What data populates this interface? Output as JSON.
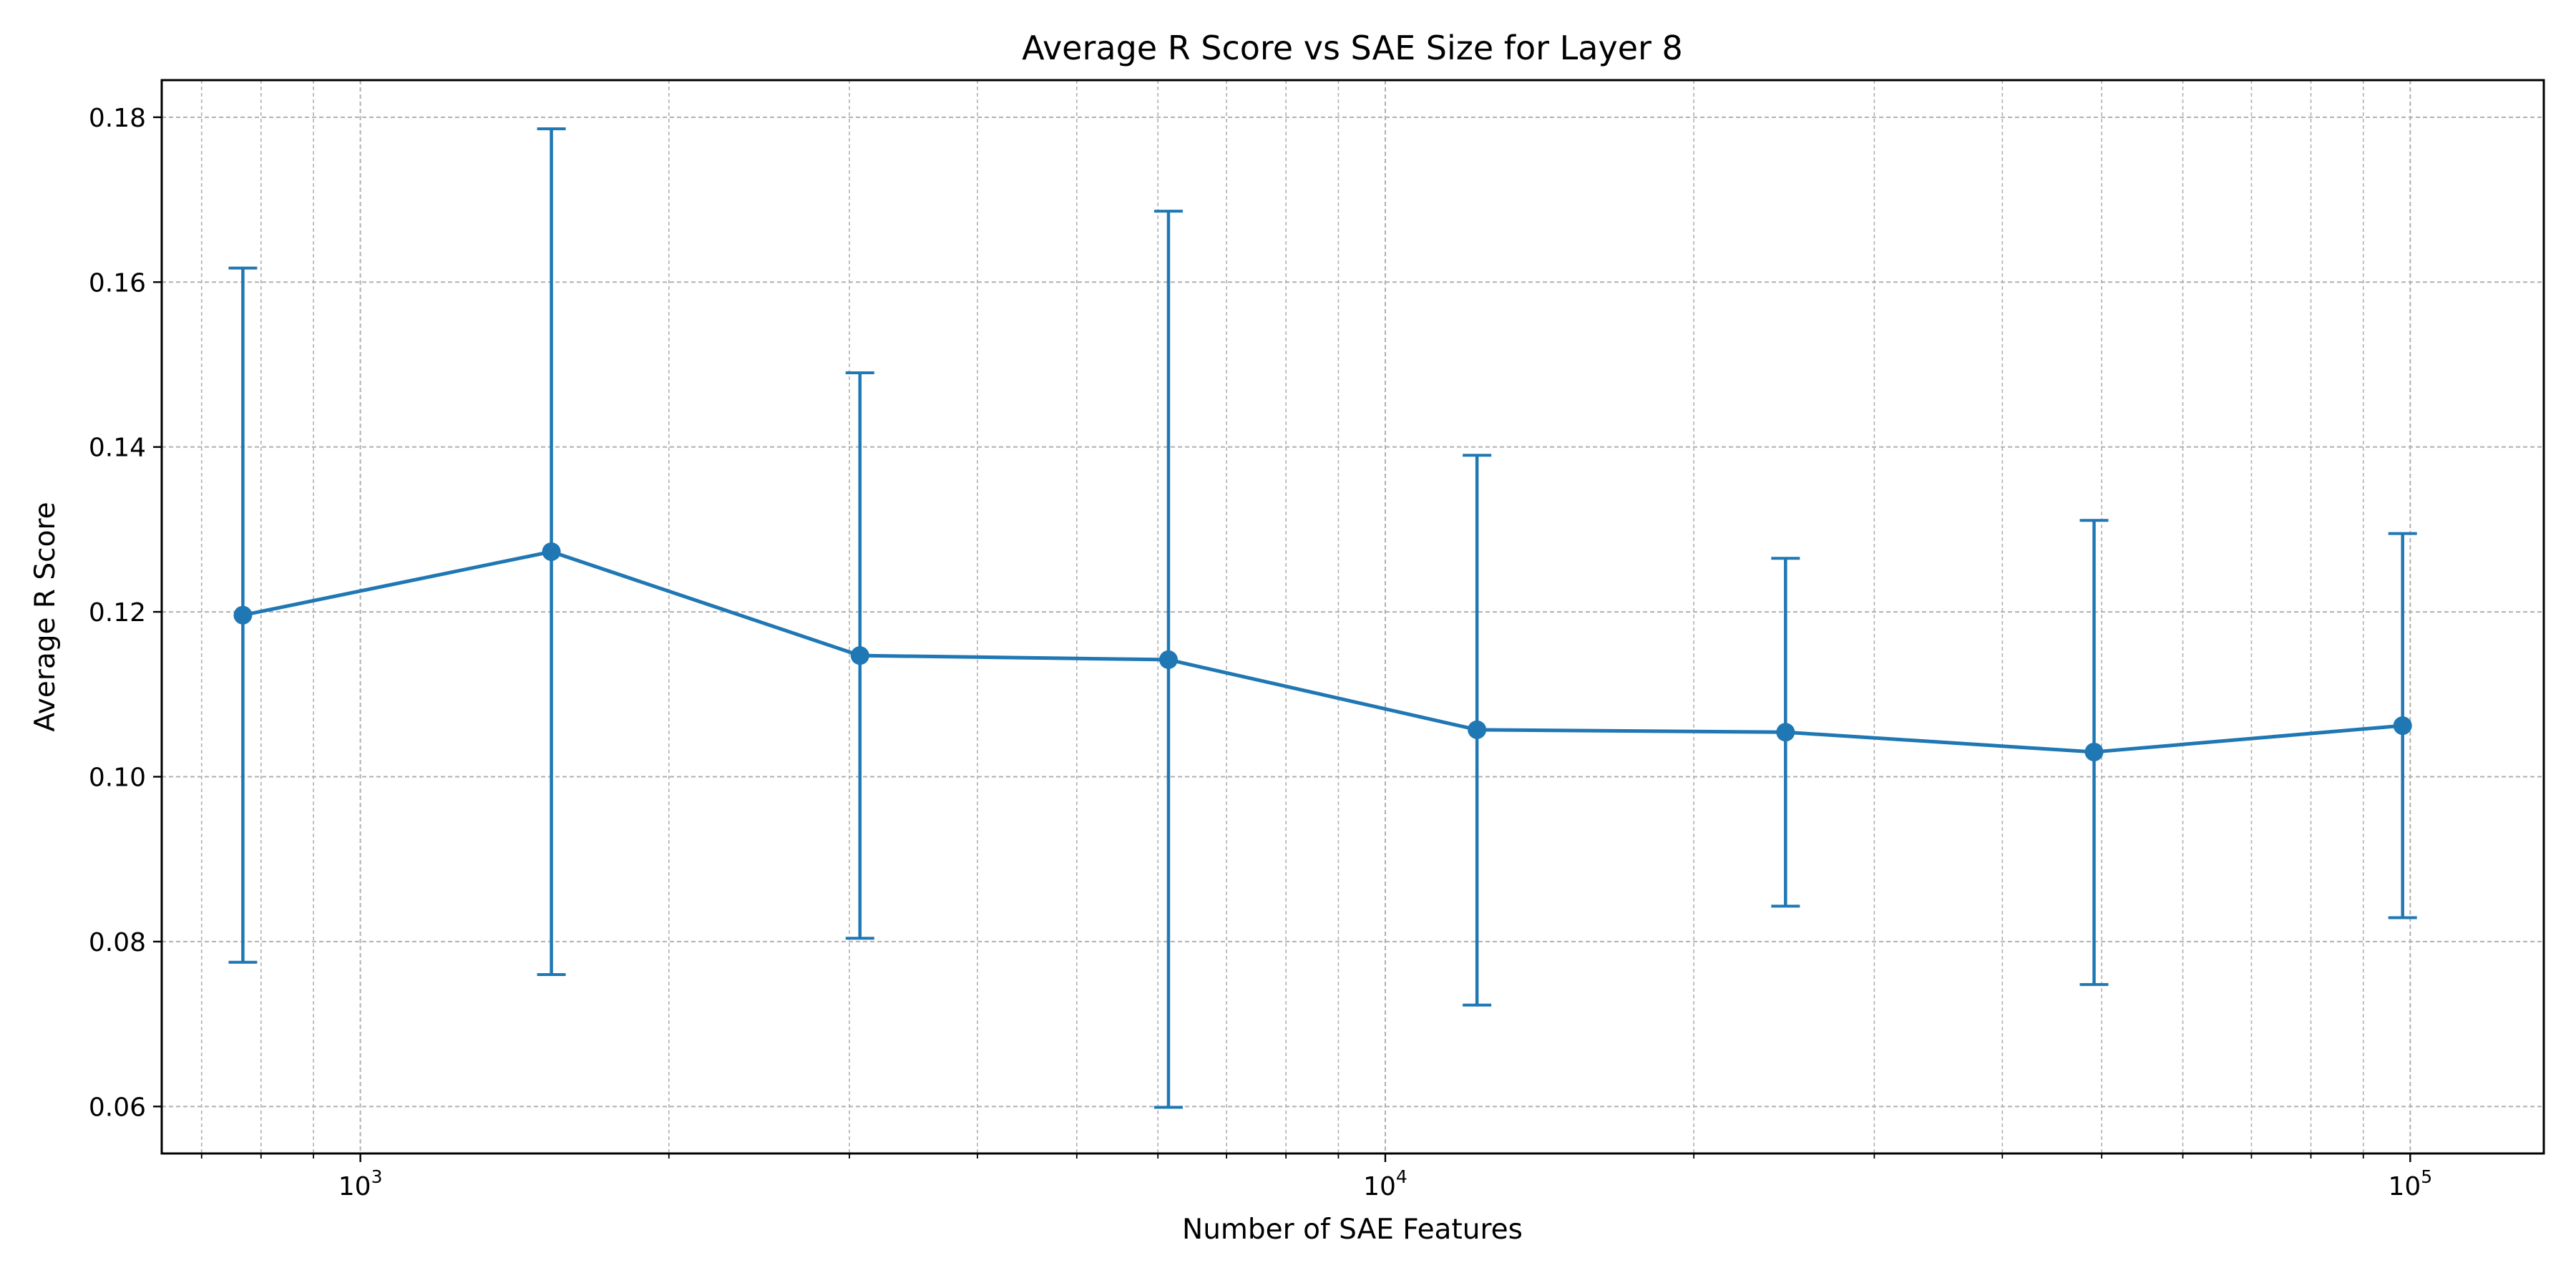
{
  "chart_data": {
    "type": "line",
    "title": "Average R Score vs SAE Size for Layer 8",
    "xlabel": "Number of SAE Features",
    "ylabel": "Average R Score",
    "xscale": "log",
    "xlim": [
      640,
      135000
    ],
    "ylim": [
      0.0543,
      0.1845
    ],
    "grid": true,
    "grid_minor": true,
    "legend": "none",
    "color": "#1f77b4",
    "x_ticks": [
      {
        "value": 1000,
        "base": "10",
        "exp": "3"
      },
      {
        "value": 10000,
        "base": "10",
        "exp": "4"
      },
      {
        "value": 100000,
        "base": "10",
        "exp": "5"
      }
    ],
    "y_ticks": [
      {
        "value": 0.06,
        "label": "0.06"
      },
      {
        "value": 0.08,
        "label": "0.08"
      },
      {
        "value": 0.1,
        "label": "0.10"
      },
      {
        "value": 0.12,
        "label": "0.12"
      },
      {
        "value": 0.14,
        "label": "0.14"
      },
      {
        "value": 0.16,
        "label": "0.16"
      },
      {
        "value": 0.18,
        "label": "0.18"
      }
    ],
    "series": [
      {
        "x": [
          768,
          1536,
          3072,
          6144,
          12288,
          24576,
          49152,
          98304
        ],
        "y": [
          0.1196,
          0.1273,
          0.1147,
          0.1142,
          0.1057,
          0.1054,
          0.103,
          0.1062
        ],
        "y_low": [
          0.0775,
          0.076,
          0.0804,
          0.0599,
          0.0723,
          0.0843,
          0.0748,
          0.0829
        ],
        "y_high": [
          0.1617,
          0.1786,
          0.149,
          0.1686,
          0.139,
          0.1265,
          0.1311,
          0.1295
        ]
      }
    ]
  }
}
